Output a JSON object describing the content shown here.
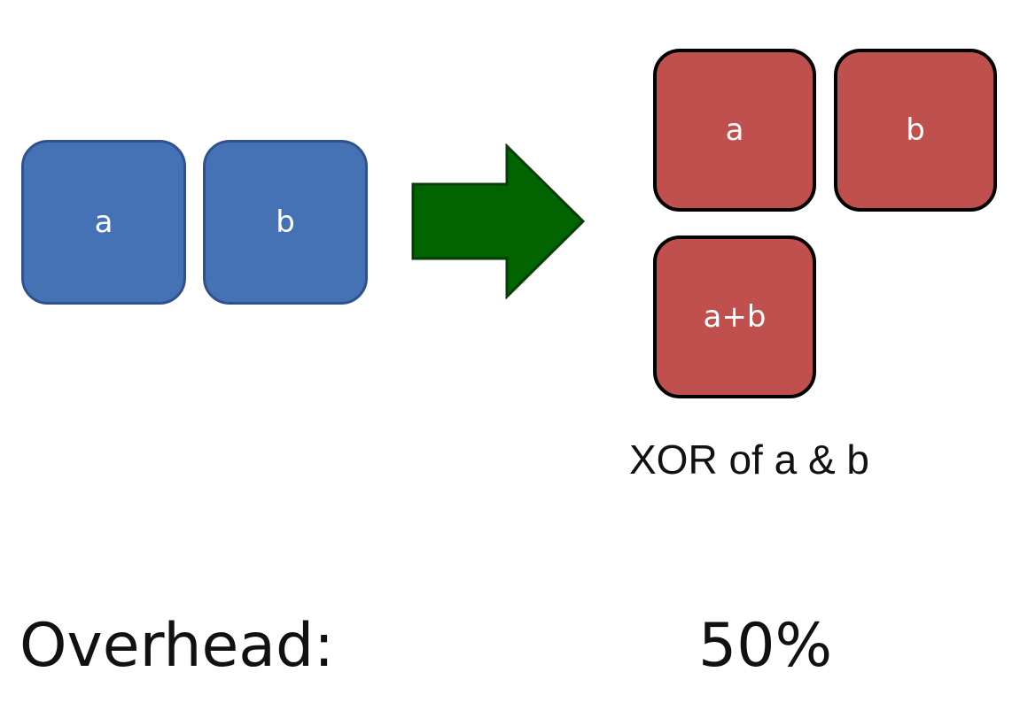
{
  "input_blocks": [
    {
      "label": "a"
    },
    {
      "label": "b"
    }
  ],
  "output_blocks": [
    {
      "label": "a"
    },
    {
      "label": "b"
    },
    {
      "label": "a+b"
    }
  ],
  "caption": "XOR of a & b",
  "overhead": {
    "label": "Overhead:",
    "value": "50%"
  },
  "colors": {
    "input_block": "#4472b4",
    "output_block": "#c0504d",
    "arrow": "#006400"
  },
  "icons": {
    "arrow": "right-arrow-icon"
  }
}
